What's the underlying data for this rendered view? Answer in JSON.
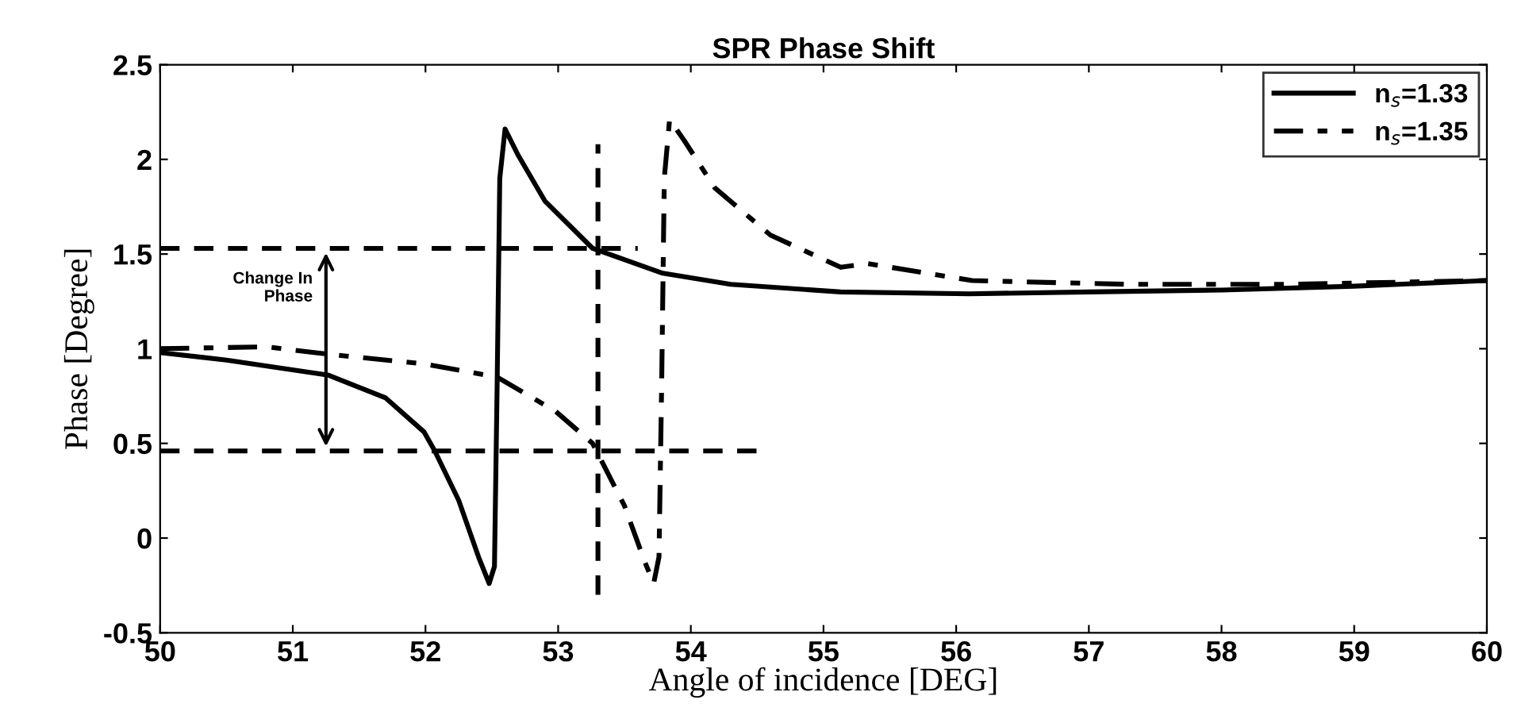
{
  "chart_data": {
    "type": "line",
    "title": "SPR Phase Shift",
    "xlabel": "Angle of incidence [DEG]",
    "ylabel": "Phase [Degree]",
    "xlim": [
      50,
      60
    ],
    "xticks": [
      50,
      51,
      52,
      53,
      54,
      55,
      56,
      57,
      58,
      59,
      60
    ],
    "ylim": [
      -0.5,
      2.5
    ],
    "yticks": [
      -0.5,
      0,
      0.5,
      1,
      1.5,
      2,
      2.5
    ],
    "grid": false,
    "legend": "top right",
    "marker": "none",
    "annotations": [
      {
        "text": "Change In\nPhase",
        "x": 51.25,
        "y": 1.0
      }
    ],
    "series": [
      {
        "name": "n$_{s}$=1.33",
        "color": "#000000",
        "line_style": "solid",
        "x": [
          50,
          50.5,
          51.27,
          51.7,
          51.99,
          52.07,
          52.25,
          52.4,
          52.48,
          52.52,
          52.54,
          52.56,
          52.6,
          52.7,
          52.9,
          53.26,
          53.78,
          54.3,
          55.13,
          56.1,
          57,
          58,
          59,
          60
        ],
        "values": [
          0.98,
          0.94,
          0.86,
          0.74,
          0.56,
          0.46,
          0.2,
          -0.1,
          -0.24,
          -0.15,
          0.8,
          1.9,
          2.16,
          2.02,
          1.78,
          1.53,
          1.4,
          1.34,
          1.3,
          1.29,
          1.3,
          1.31,
          1.33,
          1.36
        ]
      },
      {
        "name": "n$_{s}$=1.35",
        "color": "#000000",
        "line_style": "dashdot",
        "x": [
          50,
          50.8,
          51.28,
          51.99,
          52.54,
          52.98,
          53.26,
          53.5,
          53.65,
          53.72,
          53.76,
          53.78,
          53.8,
          53.84,
          53.95,
          54.18,
          54.6,
          55.13,
          55.33,
          56.12,
          57.3,
          58.5,
          60
        ],
        "values": [
          1.0,
          1.01,
          0.97,
          0.92,
          0.85,
          0.67,
          0.5,
          0.17,
          -0.12,
          -0.24,
          -0.1,
          0.8,
          1.9,
          2.21,
          2.1,
          1.85,
          1.6,
          1.43,
          1.45,
          1.36,
          1.34,
          1.34,
          1.36
        ]
      },
      {
        "color": "#000000",
        "line_style": "dashed",
        "x": [
          50,
          53.6
        ],
        "values": [
          1.53,
          1.53
        ]
      },
      {
        "color": "#000000",
        "line_style": "dashed",
        "x": [
          50,
          54.5
        ],
        "values": [
          0.46,
          0.46
        ]
      },
      {
        "color": "#000000",
        "line_style": "dashed",
        "x": [
          53.3,
          53.3
        ],
        "values": [
          -0.3,
          2.08
        ]
      }
    ]
  }
}
